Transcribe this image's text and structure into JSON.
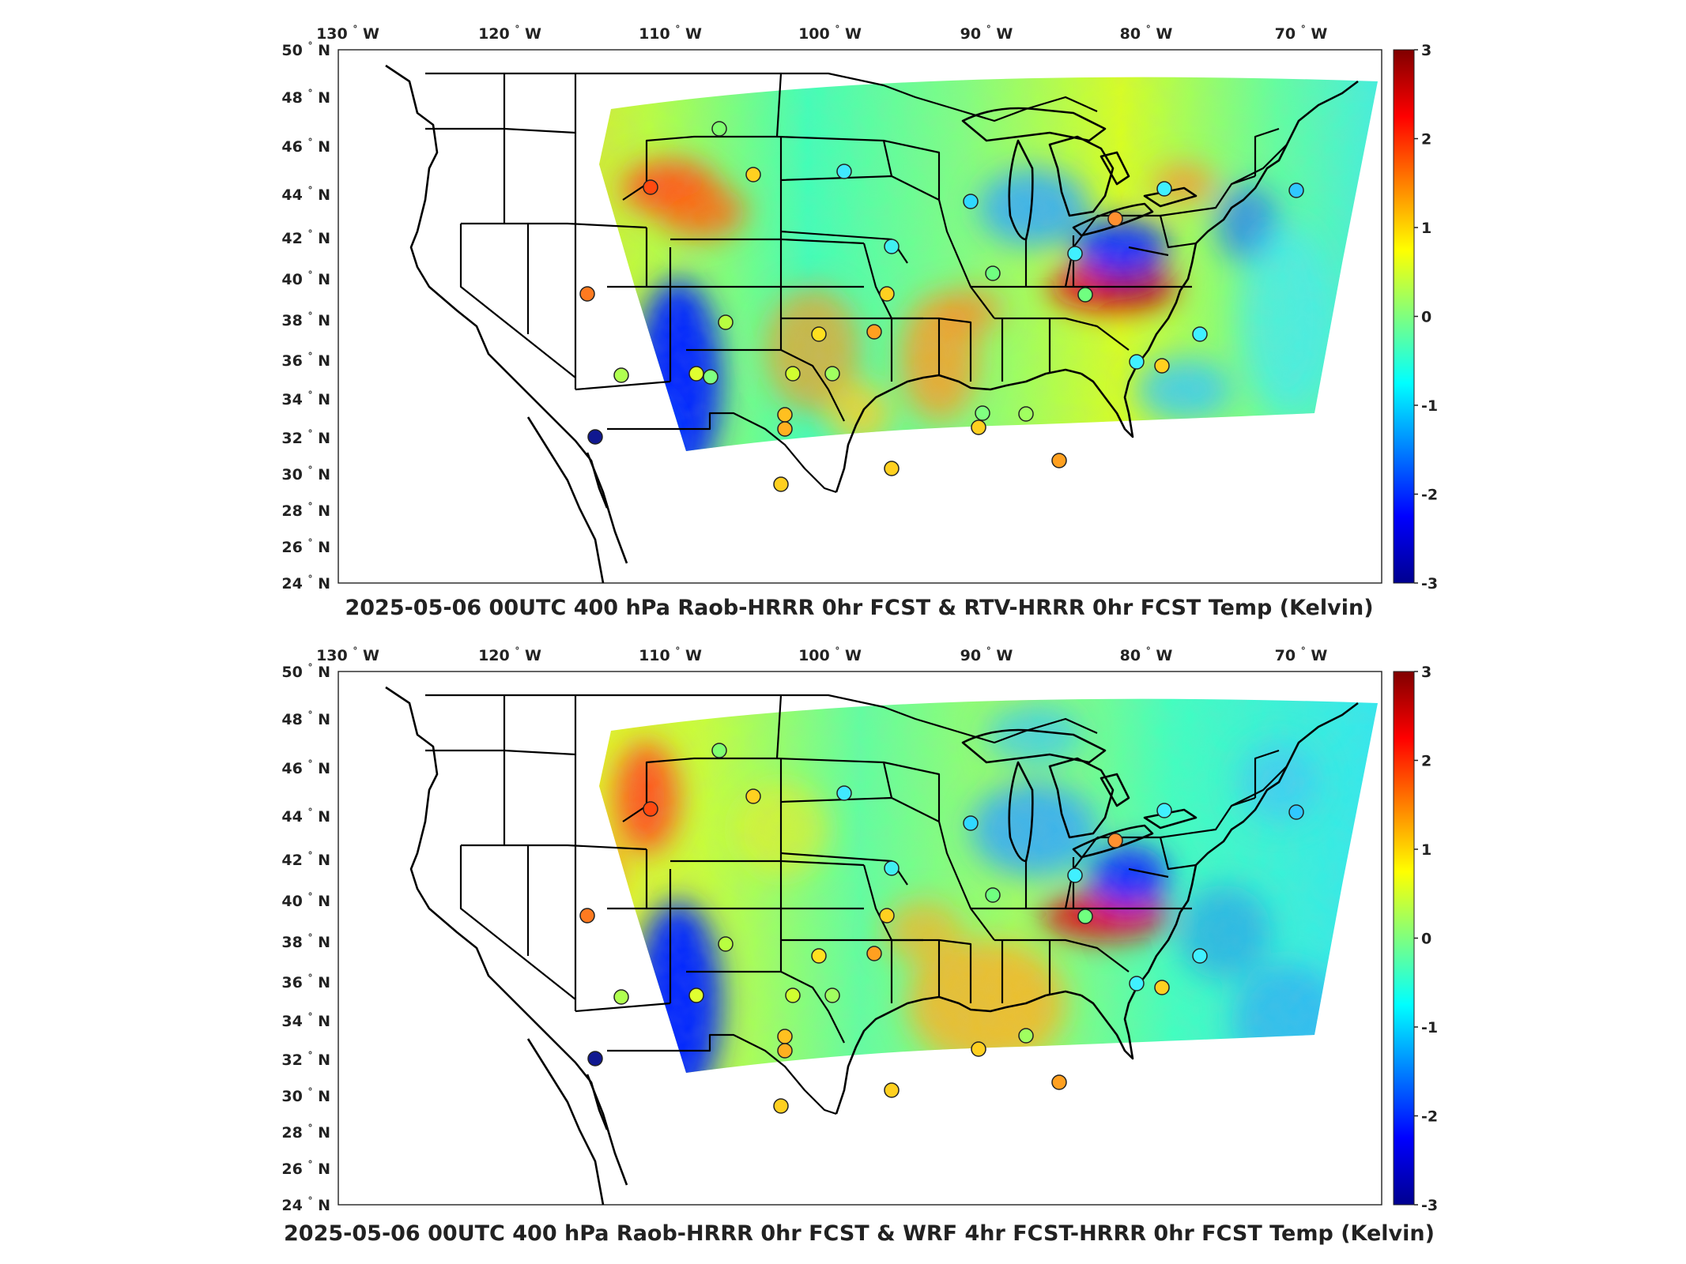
{
  "panels": [
    {
      "title": "2025-05-06 00UTC 400 hPa Raob-HRRR 0hr FCST & RTV-HRRR 0hr FCST Temp (Kelvin)"
    },
    {
      "title": "2025-05-06 00UTC 400 hPa Raob-HRRR 0hr FCST & WRF 4hr FCST-HRRR 0hr FCST Temp (Kelvin)"
    }
  ],
  "longitude_ticks": [
    "130",
    "120",
    "110",
    "100",
    "90",
    "80",
    "70"
  ],
  "longitude_hemisphere": "W",
  "latitude_ticks": [
    "50",
    "48",
    "46",
    "44",
    "42",
    "40",
    "38",
    "36",
    "34",
    "32",
    "30",
    "28",
    "26",
    "24"
  ],
  "latitude_hemisphere": "N",
  "degree_symbol": "°",
  "colorbar": {
    "ticks": [
      "3",
      "2",
      "1",
      "0",
      "-1",
      "-2",
      "-3"
    ],
    "range": [
      -3,
      3
    ],
    "colormap": "jet",
    "colors": [
      "#00008f",
      "#0000ff",
      "#00c8ff",
      "#7fff7f",
      "#ffff00",
      "#ff5000",
      "#800000"
    ]
  }
}
